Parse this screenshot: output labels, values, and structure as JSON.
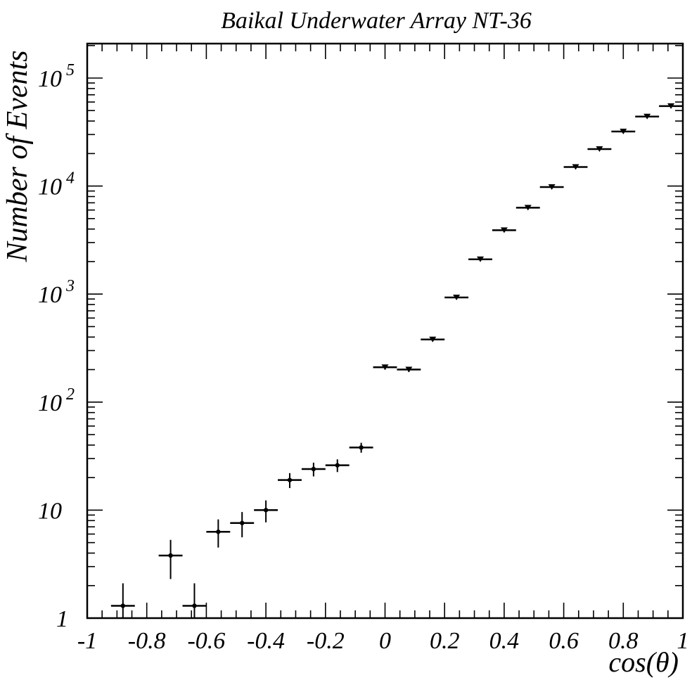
{
  "chart_data": {
    "type": "scatter",
    "title": "Baikal Underwater Array NT-36",
    "xlabel": "cos(θ)",
    "ylabel": "Number of Events",
    "xlim": [
      -1,
      1
    ],
    "ylim": [
      1,
      200000
    ],
    "yscale": "log",
    "grid": false,
    "x_ticks": [
      "-1",
      "-0.8",
      "-0.6",
      "-0.4",
      "-0.2",
      "0",
      "0.2",
      "0.4",
      "0.6",
      "0.8",
      "1"
    ],
    "y_ticks": [
      {
        "base": "1",
        "exp": ""
      },
      {
        "base": "10",
        "exp": ""
      },
      {
        "base": "10",
        "exp": "2"
      },
      {
        "base": "10",
        "exp": "3"
      },
      {
        "base": "10",
        "exp": "4"
      },
      {
        "base": "10",
        "exp": "5"
      }
    ],
    "bin_width": 0.08,
    "series": [
      {
        "points": [
          {
            "x": -0.88,
            "y": 1.3,
            "ylo": 0.72,
            "yhi": 2.1
          },
          {
            "x": -0.72,
            "y": 3.8,
            "ylo": 2.3,
            "yhi": 5.3
          },
          {
            "x": -0.64,
            "y": 1.3,
            "ylo": 0.72,
            "yhi": 2.1
          },
          {
            "x": -0.56,
            "y": 6.3,
            "ylo": 4.5,
            "yhi": 8.2
          },
          {
            "x": -0.48,
            "y": 7.6,
            "ylo": 5.6,
            "yhi": 9.6
          },
          {
            "x": -0.4,
            "y": 10,
            "ylo": 7.7,
            "yhi": 12.3
          },
          {
            "x": -0.32,
            "y": 19,
            "ylo": 16,
            "yhi": 22
          },
          {
            "x": -0.24,
            "y": 24,
            "ylo": 20.5,
            "yhi": 27.5
          },
          {
            "x": -0.16,
            "y": 26,
            "ylo": 22.5,
            "yhi": 29.5
          },
          {
            "x": -0.08,
            "y": 38,
            "ylo": 34,
            "yhi": 42
          },
          {
            "x": 0.0,
            "y": 210,
            "ylo": 200,
            "yhi": 220
          },
          {
            "x": 0.08,
            "y": 200,
            "ylo": 190,
            "yhi": 210
          },
          {
            "x": 0.16,
            "y": 380,
            "ylo": 365,
            "yhi": 395
          },
          {
            "x": 0.24,
            "y": 930,
            "ylo": 900,
            "yhi": 960
          },
          {
            "x": 0.32,
            "y": 2100,
            "ylo": 2050,
            "yhi": 2150
          },
          {
            "x": 0.4,
            "y": 3900,
            "ylo": 3840,
            "yhi": 3960
          },
          {
            "x": 0.48,
            "y": 6300,
            "ylo": 6220,
            "yhi": 6380
          },
          {
            "x": 0.56,
            "y": 9800,
            "ylo": 9700,
            "yhi": 9900
          },
          {
            "x": 0.64,
            "y": 15000,
            "ylo": 14880,
            "yhi": 15120
          },
          {
            "x": 0.72,
            "y": 22000,
            "ylo": 21850,
            "yhi": 22150
          },
          {
            "x": 0.8,
            "y": 32000,
            "ylo": 31820,
            "yhi": 32180
          },
          {
            "x": 0.88,
            "y": 44000,
            "ylo": 43800,
            "yhi": 44200
          },
          {
            "x": 0.96,
            "y": 55000,
            "ylo": 54770,
            "yhi": 55230
          }
        ]
      }
    ]
  }
}
